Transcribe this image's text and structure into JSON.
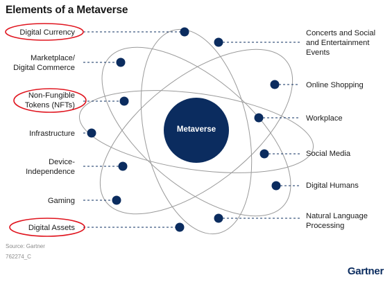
{
  "title": "Elements of a Metaverse",
  "center_label": "Metaverse",
  "left_items": [
    {
      "key": "digital-currency",
      "label": "Digital Currency",
      "highlighted": true
    },
    {
      "key": "marketplace",
      "label": "Marketplace/\nDigital Commerce",
      "highlighted": false
    },
    {
      "key": "nft",
      "label": "Non-Fungible\nTokens (NFTs)",
      "highlighted": true
    },
    {
      "key": "infrastructure",
      "label": "Infrastructure",
      "highlighted": false
    },
    {
      "key": "device-independence",
      "label": "Device-\nIndependence",
      "highlighted": false
    },
    {
      "key": "gaming",
      "label": "Gaming",
      "highlighted": false
    },
    {
      "key": "digital-assets",
      "label": "Digital Assets",
      "highlighted": true
    }
  ],
  "right_items": [
    {
      "key": "concerts",
      "label": "Concerts and Social\nand Entertainment\nEvents",
      "highlighted": false
    },
    {
      "key": "online-shopping",
      "label": "Online Shopping",
      "highlighted": false
    },
    {
      "key": "workplace",
      "label": "Workplace",
      "highlighted": false
    },
    {
      "key": "social-media",
      "label": "Social Media",
      "highlighted": false
    },
    {
      "key": "digital-humans",
      "label": "Digital Humans",
      "highlighted": false
    },
    {
      "key": "nlp",
      "label": "Natural Language\nProcessing",
      "highlighted": false
    }
  ],
  "source": "Source: Gartner",
  "code": "762274_C",
  "brand": "Gartner",
  "colors": {
    "node": "#0b2c5f",
    "highlight": "#e0141e",
    "orbit": "#9a9a9a",
    "connector": "#0b2c5f"
  }
}
